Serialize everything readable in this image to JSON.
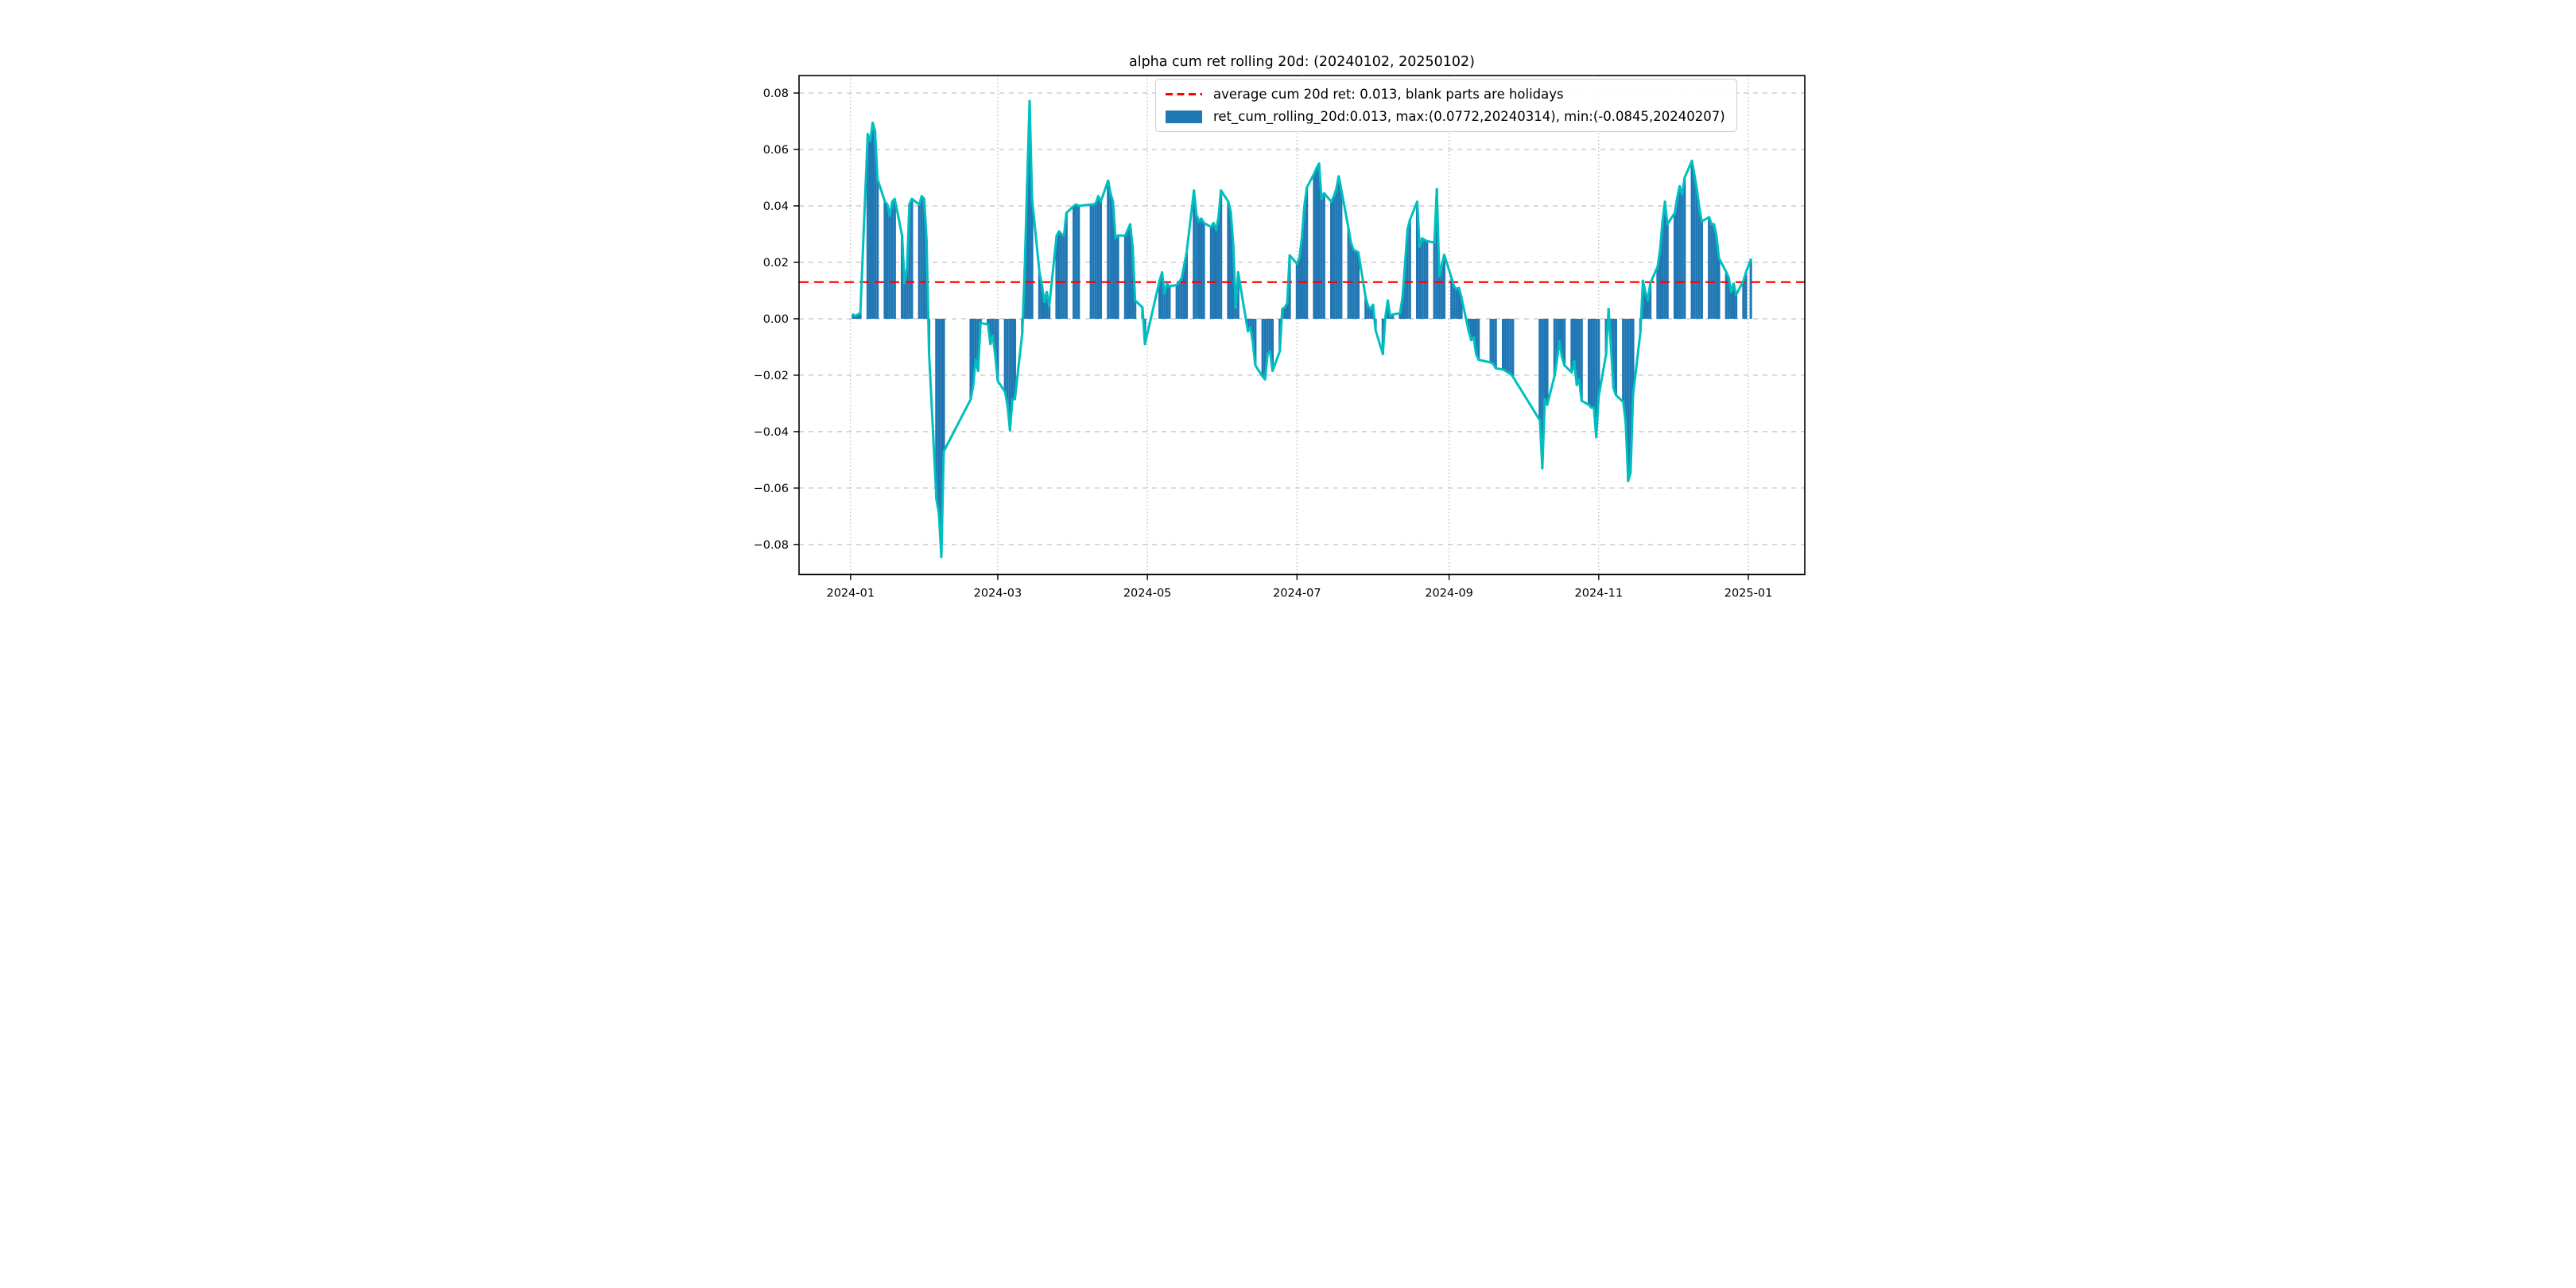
{
  "title": "alpha cum ret rolling 20d: (20240102, 20250102)",
  "legend": {
    "avg_label": "average cum 20d ret: 0.013, blank parts are holidays",
    "series_label": "ret_cum_rolling_20d:0.013, max:(0.0772,20240314), min:(-0.0845,20240207)"
  },
  "colors": {
    "bar": "#1f77b4",
    "line": "#00bfbf",
    "average": "#ff0000",
    "grid": "#b3b3b3",
    "spine": "#000000",
    "text": "#000000"
  },
  "chart_data": {
    "type": "bar",
    "title": "alpha cum ret rolling 20d: (20240102, 20250102)",
    "xlabel": "",
    "ylabel": "",
    "average_line": 0.013,
    "max": {
      "value": 0.0772,
      "date": "2024-03-14"
    },
    "min": {
      "value": -0.0845,
      "date": "2024-02-07"
    },
    "ylim": [
      -0.0906,
      0.0862
    ],
    "xlim_days_from_20240101": [
      -21,
      389
    ],
    "grid": true,
    "legend_position": "upper center",
    "y_ticks": [
      {
        "v": 0.08,
        "label": "0.08"
      },
      {
        "v": 0.06,
        "label": "0.06"
      },
      {
        "v": 0.04,
        "label": "0.04"
      },
      {
        "v": 0.02,
        "label": "0.02"
      },
      {
        "v": 0.0,
        "label": "0.00"
      },
      {
        "v": -0.02,
        "label": "−0.02"
      },
      {
        "v": -0.04,
        "label": "−0.04"
      },
      {
        "v": -0.06,
        "label": "−0.06"
      },
      {
        "v": -0.08,
        "label": "−0.08"
      }
    ],
    "x_ticks": [
      {
        "date": "2024-01-01",
        "label": "2024-01"
      },
      {
        "date": "2024-03-01",
        "label": "2024-03"
      },
      {
        "date": "2024-05-01",
        "label": "2024-05"
      },
      {
        "date": "2024-07-01",
        "label": "2024-07"
      },
      {
        "date": "2024-09-01",
        "label": "2024-09"
      },
      {
        "date": "2024-11-01",
        "label": "2024-11"
      },
      {
        "date": "2025-01-01",
        "label": "2025-01"
      }
    ],
    "dates": [
      "2024-01-02",
      "2024-01-03",
      "2024-01-04",
      "2024-01-05",
      "2024-01-08",
      "2024-01-09",
      "2024-01-10",
      "2024-01-11",
      "2024-01-12",
      "2024-01-15",
      "2024-01-16",
      "2024-01-17",
      "2024-01-18",
      "2024-01-19",
      "2024-01-22",
      "2024-01-23",
      "2024-01-24",
      "2024-01-25",
      "2024-01-26",
      "2024-01-29",
      "2024-01-30",
      "2024-01-31",
      "2024-02-01",
      "2024-02-02",
      "2024-02-05",
      "2024-02-06",
      "2024-02-07",
      "2024-02-08",
      "2024-02-19",
      "2024-02-20",
      "2024-02-21",
      "2024-02-22",
      "2024-02-23",
      "2024-02-26",
      "2024-02-27",
      "2024-02-28",
      "2024-02-29",
      "2024-03-01",
      "2024-03-04",
      "2024-03-05",
      "2024-03-06",
      "2024-03-07",
      "2024-03-08",
      "2024-03-11",
      "2024-03-12",
      "2024-03-13",
      "2024-03-14",
      "2024-03-15",
      "2024-03-18",
      "2024-03-19",
      "2024-03-20",
      "2024-03-21",
      "2024-03-22",
      "2024-03-25",
      "2024-03-26",
      "2024-03-27",
      "2024-03-28",
      "2024-03-29",
      "2024-04-01",
      "2024-04-02",
      "2024-04-03",
      "2024-04-08",
      "2024-04-09",
      "2024-04-10",
      "2024-04-11",
      "2024-04-12",
      "2024-04-15",
      "2024-04-16",
      "2024-04-17",
      "2024-04-18",
      "2024-04-19",
      "2024-04-22",
      "2024-04-23",
      "2024-04-24",
      "2024-04-25",
      "2024-04-26",
      "2024-04-29",
      "2024-04-30",
      "2024-05-06",
      "2024-05-07",
      "2024-05-08",
      "2024-05-09",
      "2024-05-10",
      "2024-05-13",
      "2024-05-14",
      "2024-05-15",
      "2024-05-16",
      "2024-05-17",
      "2024-05-20",
      "2024-05-21",
      "2024-05-22",
      "2024-05-23",
      "2024-05-24",
      "2024-05-27",
      "2024-05-28",
      "2024-05-29",
      "2024-05-30",
      "2024-05-31",
      "2024-06-03",
      "2024-06-04",
      "2024-06-05",
      "2024-06-06",
      "2024-06-07",
      "2024-06-11",
      "2024-06-12",
      "2024-06-13",
      "2024-06-14",
      "2024-06-17",
      "2024-06-18",
      "2024-06-19",
      "2024-06-20",
      "2024-06-21",
      "2024-06-24",
      "2024-06-25",
      "2024-06-26",
      "2024-06-27",
      "2024-06-28",
      "2024-07-01",
      "2024-07-02",
      "2024-07-03",
      "2024-07-04",
      "2024-07-05",
      "2024-07-08",
      "2024-07-09",
      "2024-07-10",
      "2024-07-11",
      "2024-07-12",
      "2024-07-15",
      "2024-07-16",
      "2024-07-17",
      "2024-07-18",
      "2024-07-19",
      "2024-07-22",
      "2024-07-23",
      "2024-07-24",
      "2024-07-25",
      "2024-07-26",
      "2024-07-29",
      "2024-07-30",
      "2024-07-31",
      "2024-08-01",
      "2024-08-02",
      "2024-08-05",
      "2024-08-06",
      "2024-08-07",
      "2024-08-08",
      "2024-08-09",
      "2024-08-12",
      "2024-08-13",
      "2024-08-14",
      "2024-08-15",
      "2024-08-16",
      "2024-08-19",
      "2024-08-20",
      "2024-08-21",
      "2024-08-22",
      "2024-08-23",
      "2024-08-26",
      "2024-08-27",
      "2024-08-28",
      "2024-08-29",
      "2024-08-30",
      "2024-09-02",
      "2024-09-03",
      "2024-09-04",
      "2024-09-05",
      "2024-09-06",
      "2024-09-09",
      "2024-09-10",
      "2024-09-11",
      "2024-09-12",
      "2024-09-13",
      "2024-09-18",
      "2024-09-19",
      "2024-09-20",
      "2024-09-23",
      "2024-09-24",
      "2024-09-25",
      "2024-09-26",
      "2024-09-27",
      "2024-10-08",
      "2024-10-09",
      "2024-10-10",
      "2024-10-11",
      "2024-10-14",
      "2024-10-15",
      "2024-10-16",
      "2024-10-17",
      "2024-10-18",
      "2024-10-21",
      "2024-10-22",
      "2024-10-23",
      "2024-10-24",
      "2024-10-25",
      "2024-10-28",
      "2024-10-29",
      "2024-10-30",
      "2024-10-31",
      "2024-11-01",
      "2024-11-04",
      "2024-11-05",
      "2024-11-06",
      "2024-11-07",
      "2024-11-08",
      "2024-11-11",
      "2024-11-12",
      "2024-11-13",
      "2024-11-14",
      "2024-11-15",
      "2024-11-18",
      "2024-11-19",
      "2024-11-20",
      "2024-11-21",
      "2024-11-22",
      "2024-11-25",
      "2024-11-26",
      "2024-11-27",
      "2024-11-28",
      "2024-11-29",
      "2024-12-02",
      "2024-12-03",
      "2024-12-04",
      "2024-12-05",
      "2024-12-06",
      "2024-12-09",
      "2024-12-10",
      "2024-12-11",
      "2024-12-12",
      "2024-12-13",
      "2024-12-16",
      "2024-12-17",
      "2024-12-18",
      "2024-12-19",
      "2024-12-20",
      "2024-12-23",
      "2024-12-24",
      "2024-12-25",
      "2024-12-26",
      "2024-12-27",
      "2024-12-30",
      "2024-12-31",
      "2025-01-02"
    ],
    "values": [
      0.0015,
      0.001,
      0.0015,
      0.002,
      0.0655,
      0.063,
      0.0695,
      0.0665,
      0.0495,
      0.0415,
      0.0405,
      0.0365,
      0.0415,
      0.0425,
      0.0295,
      0.0125,
      0.018,
      0.0405,
      0.0425,
      0.0405,
      0.0435,
      0.0425,
      0.028,
      -0.012,
      -0.064,
      -0.069,
      -0.0845,
      -0.047,
      -0.0285,
      -0.0235,
      -0.0145,
      -0.0185,
      -0.0015,
      -0.002,
      -0.009,
      -0.006,
      -0.013,
      -0.022,
      -0.026,
      -0.031,
      -0.0395,
      -0.0285,
      -0.0285,
      -0.005,
      0.018,
      0.048,
      0.0772,
      0.0425,
      0.0165,
      0.012,
      0.006,
      0.0095,
      0.0045,
      0.0295,
      0.031,
      0.03,
      0.0295,
      0.0375,
      0.04,
      0.0405,
      0.04,
      0.0405,
      0.0405,
      0.041,
      0.0435,
      0.0415,
      0.049,
      0.0445,
      0.0415,
      0.0285,
      0.0295,
      0.0295,
      0.0315,
      0.0335,
      0.0255,
      0.0065,
      0.004,
      -0.009,
      0.0135,
      0.0165,
      0.009,
      0.0125,
      0.0115,
      0.012,
      0.013,
      0.0145,
      0.019,
      0.0235,
      0.0455,
      0.037,
      0.0345,
      0.0355,
      0.034,
      0.0325,
      0.034,
      0.0315,
      0.036,
      0.0455,
      0.0415,
      0.038,
      0.0265,
      0.004,
      0.0165,
      -0.0045,
      -0.003,
      -0.0085,
      -0.0165,
      -0.0205,
      -0.0215,
      -0.0125,
      -0.0115,
      -0.0185,
      -0.0115,
      0.0035,
      0.004,
      0.0055,
      0.0225,
      0.0195,
      0.0215,
      0.029,
      0.04,
      0.0465,
      0.0515,
      0.0535,
      0.055,
      0.0425,
      0.0445,
      0.0415,
      0.0435,
      0.046,
      0.0505,
      0.046,
      0.032,
      0.027,
      0.0245,
      0.024,
      0.0235,
      0.0075,
      0.0045,
      0.0035,
      0.005,
      -0.004,
      -0.0125,
      0.0005,
      0.0065,
      0.001,
      0.0015,
      0.002,
      0.0075,
      0.019,
      0.0315,
      0.035,
      0.0415,
      0.0255,
      0.0285,
      0.028,
      0.0275,
      0.027,
      0.046,
      0.0151,
      0.019,
      0.0227,
      0.0145,
      0.0115,
      0.0105,
      0.011,
      0.0078,
      -0.0045,
      -0.0076,
      -0.0066,
      -0.0125,
      -0.0145,
      -0.0155,
      -0.016,
      -0.0175,
      -0.018,
      -0.0185,
      -0.019,
      -0.0195,
      -0.0205,
      -0.036,
      -0.053,
      -0.0285,
      -0.0305,
      -0.0202,
      -0.0145,
      -0.008,
      -0.0135,
      -0.0165,
      -0.019,
      -0.015,
      -0.0235,
      -0.0215,
      -0.029,
      -0.0305,
      -0.0315,
      -0.0315,
      -0.042,
      -0.0275,
      -0.0125,
      0.0035,
      -0.0105,
      -0.0245,
      -0.027,
      -0.0295,
      -0.037,
      -0.0575,
      -0.0545,
      -0.027,
      -0.0045,
      0.0135,
      0.0095,
      0.0065,
      0.0125,
      0.0185,
      0.0245,
      0.0345,
      0.0415,
      0.0335,
      0.0375,
      0.043,
      0.047,
      0.044,
      0.05,
      0.056,
      0.051,
      0.046,
      0.0395,
      0.0345,
      0.036,
      0.0335,
      0.0335,
      0.0295,
      0.0215,
      0.0165,
      0.0145,
      0.0095,
      0.0125,
      0.0085,
      0.0135,
      0.0165,
      0.021
    ]
  }
}
